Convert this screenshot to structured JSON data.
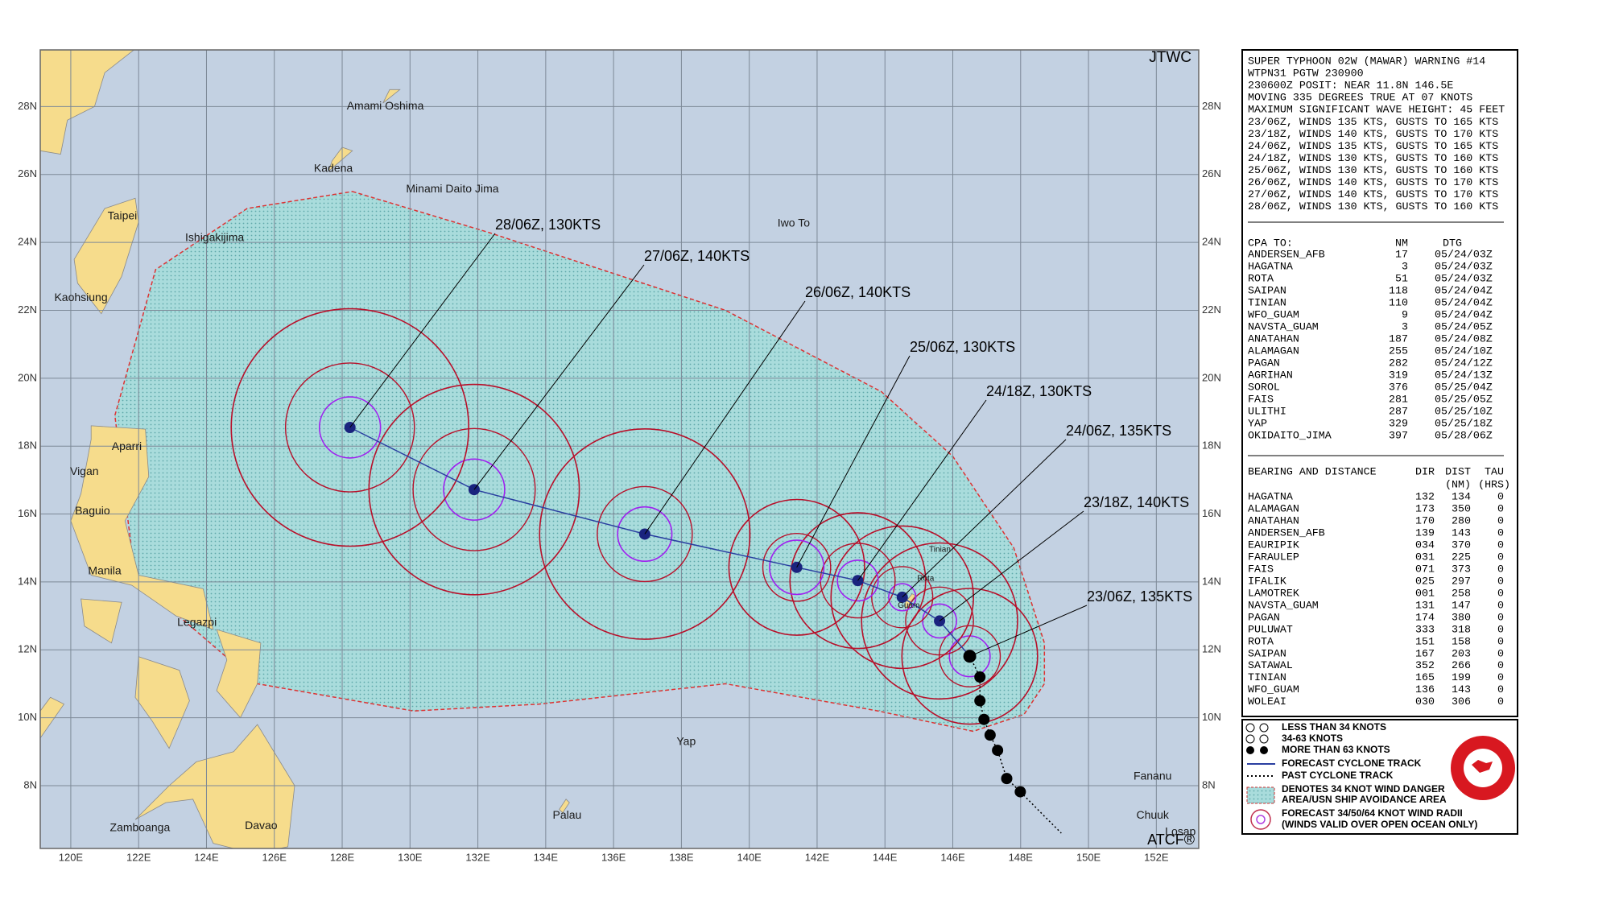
{
  "map": {
    "title": "JTWC",
    "credit": "ATCF®",
    "xlim": [
      119.1,
      153.25
    ],
    "ylim": [
      6.15,
      29.67
    ],
    "xticks": [
      {
        "value": 120,
        "label": "120E"
      },
      {
        "value": 122,
        "label": "122E"
      },
      {
        "value": 124,
        "label": "124E"
      },
      {
        "value": 126,
        "label": "126E"
      },
      {
        "value": 128,
        "label": "128E"
      },
      {
        "value": 130,
        "label": "130E"
      },
      {
        "value": 132,
        "label": "132E"
      },
      {
        "value": 134,
        "label": "134E"
      },
      {
        "value": 136,
        "label": "136E"
      },
      {
        "value": 138,
        "label": "138E"
      },
      {
        "value": 140,
        "label": "140E"
      },
      {
        "value": 142,
        "label": "142E"
      },
      {
        "value": 144,
        "label": "144E"
      },
      {
        "value": 146,
        "label": "146E"
      },
      {
        "value": 148,
        "label": "148E"
      },
      {
        "value": 150,
        "label": "150E"
      },
      {
        "value": 152,
        "label": "152E"
      }
    ],
    "yticks": [
      {
        "value": 8,
        "label": "8N"
      },
      {
        "value": 10,
        "label": "10N"
      },
      {
        "value": 12,
        "label": "12N"
      },
      {
        "value": 14,
        "label": "14N"
      },
      {
        "value": 16,
        "label": "16N"
      },
      {
        "value": 18,
        "label": "18N"
      },
      {
        "value": 20,
        "label": "20N"
      },
      {
        "value": 22,
        "label": "22N"
      },
      {
        "value": 24,
        "label": "24N"
      },
      {
        "value": 26,
        "label": "26N"
      },
      {
        "value": 28,
        "label": "28N"
      }
    ],
    "places": [
      "Amami Oshima",
      "Kadena",
      "Minami Daito Jima",
      "Iwo To",
      "Taipei",
      "Ishigakijima",
      "Kaohsiung",
      "Aparri",
      "Vigan",
      "Baguio",
      "Manila",
      "Legazpi",
      "Zamboanga",
      "Davao",
      "Yap",
      "Palau",
      "Fananu",
      "Chuuk",
      "Losap",
      "Tinian",
      "Rota",
      "Guam"
    ],
    "forecast_labels": [
      "23/06Z, 135KTS",
      "23/18Z, 140KTS",
      "24/06Z, 135KTS",
      "24/18Z, 130KTS",
      "25/06Z, 130KTS",
      "26/06Z, 140KTS",
      "27/06Z, 140KTS",
      "28/06Z, 130KTS"
    ]
  },
  "panel": {
    "header": [
      "SUPER TYPHOON 02W (MAWAR) WARNING #14",
      "WTPN31 PGTW 230900",
      "230600Z POSIT: NEAR 11.8N 146.5E",
      "MOVING 335 DEGREES TRUE AT 07 KNOTS",
      "MAXIMUM SIGNIFICANT WAVE HEIGHT: 45 FEET"
    ],
    "forecasts": [
      "23/06Z, WINDS 135 KTS, GUSTS TO 165 KTS",
      "23/18Z, WINDS 140 KTS, GUSTS TO 170 KTS",
      "24/06Z, WINDS 135 KTS, GUSTS TO 165 KTS",
      "24/18Z, WINDS 130 KTS, GUSTS TO 160 KTS",
      "25/06Z, WINDS 130 KTS, GUSTS TO 160 KTS",
      "26/06Z, WINDS 140 KTS, GUSTS TO 170 KTS",
      "27/06Z, WINDS 140 KTS, GUSTS TO 170 KTS",
      "28/06Z, WINDS 130 KTS, GUSTS TO 160 KTS"
    ],
    "cpa": {
      "title": "CPA TO:",
      "columns": [
        "NM",
        "DTG"
      ],
      "rows": [
        [
          "ANDERSEN_AFB",
          "17",
          "05/24/03Z"
        ],
        [
          "HAGATNA",
          "3",
          "05/24/03Z"
        ],
        [
          "ROTA",
          "51",
          "05/24/03Z"
        ],
        [
          "SAIPAN",
          "118",
          "05/24/04Z"
        ],
        [
          "TINIAN",
          "110",
          "05/24/04Z"
        ],
        [
          "WFO_GUAM",
          "9",
          "05/24/04Z"
        ],
        [
          "NAVSTA_GUAM",
          "3",
          "05/24/05Z"
        ],
        [
          "ANATAHAN",
          "187",
          "05/24/08Z"
        ],
        [
          "ALAMAGAN",
          "255",
          "05/24/10Z"
        ],
        [
          "PAGAN",
          "282",
          "05/24/12Z"
        ],
        [
          "AGRIHAN",
          "319",
          "05/24/13Z"
        ],
        [
          "SOROL",
          "376",
          "05/25/04Z"
        ],
        [
          "FAIS",
          "281",
          "05/25/05Z"
        ],
        [
          "ULITHI",
          "287",
          "05/25/10Z"
        ],
        [
          "YAP",
          "329",
          "05/25/18Z"
        ],
        [
          "OKIDAITO_JIMA",
          "397",
          "05/28/06Z"
        ]
      ]
    },
    "bearing": {
      "title": "BEARING AND DISTANCE",
      "columns": [
        "DIR",
        "DIST",
        "TAU"
      ],
      "units": [
        "(NM)",
        "(HRS)"
      ],
      "rows": [
        [
          "HAGATNA",
          "132",
          "134",
          "0"
        ],
        [
          "ALAMAGAN",
          "173",
          "350",
          "0"
        ],
        [
          "ANATAHAN",
          "170",
          "280",
          "0"
        ],
        [
          "ANDERSEN_AFB",
          "139",
          "143",
          "0"
        ],
        [
          "EAURIPIK",
          "034",
          "370",
          "0"
        ],
        [
          "FARAULEP",
          "031",
          "225",
          "0"
        ],
        [
          "FAIS",
          "071",
          "373",
          "0"
        ],
        [
          "IFALIK",
          "025",
          "297",
          "0"
        ],
        [
          "LAMOTREK",
          "001",
          "258",
          "0"
        ],
        [
          "NAVSTA_GUAM",
          "131",
          "147",
          "0"
        ],
        [
          "PAGAN",
          "174",
          "380",
          "0"
        ],
        [
          "PULUWAT",
          "333",
          "318",
          "0"
        ],
        [
          "ROTA",
          "151",
          "158",
          "0"
        ],
        [
          "SAIPAN",
          "167",
          "203",
          "0"
        ],
        [
          "SATAWAL",
          "352",
          "266",
          "0"
        ],
        [
          "TINIAN",
          "165",
          "199",
          "0"
        ],
        [
          "WFO_GUAM",
          "136",
          "143",
          "0"
        ],
        [
          "WOLEAI",
          "030",
          "306",
          "0"
        ]
      ]
    }
  },
  "legend": {
    "items": [
      "LESS THAN 34 KNOTS",
      "34-63 KNOTS",
      "MORE THAN 63 KNOTS",
      "FORECAST CYCLONE TRACK",
      "PAST CYCLONE TRACK",
      "DENOTES 34 KNOT WIND DANGER",
      "AREA/USN SHIP AVOIDANCE AREA",
      "FORECAST 34/50/64 KNOT WIND RADII",
      "(WINDS VALID OVER OPEN OCEAN ONLY)"
    ]
  }
}
